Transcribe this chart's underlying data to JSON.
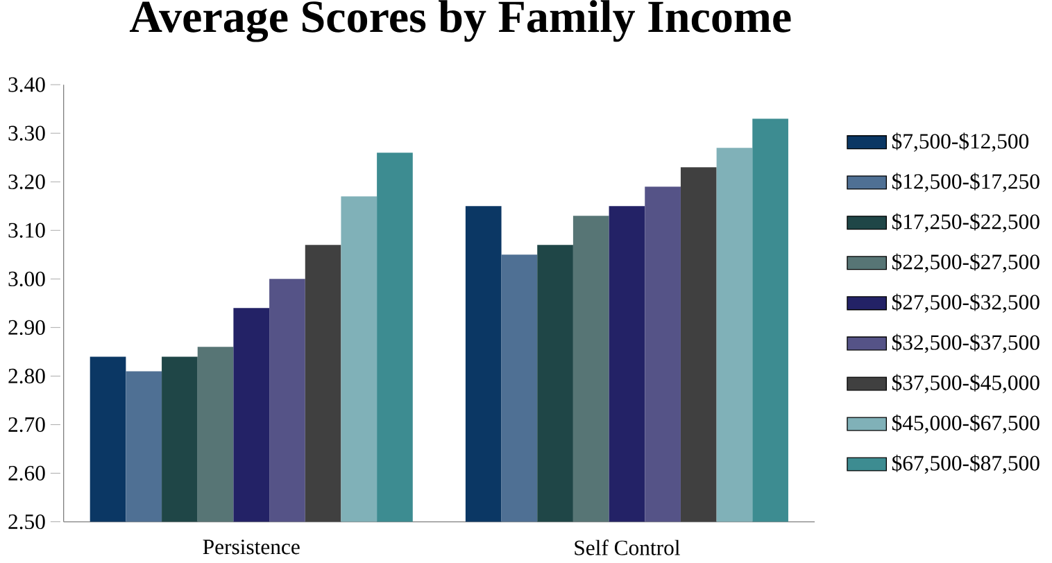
{
  "chart_data": {
    "type": "bar",
    "title": "Average Scores by Family Income",
    "categories": [
      "Persistence",
      "Self Control"
    ],
    "ylim": [
      2.5,
      3.4
    ],
    "yticks": [
      {
        "value": 2.5,
        "label": "2.50"
      },
      {
        "value": 2.6,
        "label": "2.60"
      },
      {
        "value": 2.7,
        "label": "2.70"
      },
      {
        "value": 2.8,
        "label": "2.80"
      },
      {
        "value": 2.9,
        "label": "2.90"
      },
      {
        "value": 3.0,
        "label": "3.00"
      },
      {
        "value": 3.1,
        "label": "3.10"
      },
      {
        "value": 3.2,
        "label": "3.20"
      },
      {
        "value": 3.3,
        "label": "3.30"
      },
      {
        "value": 3.4,
        "label": "3.40"
      }
    ],
    "legend": "right",
    "series": [
      {
        "name": "$7,500-$12,500",
        "color": "#0b3764",
        "values": [
          2.84,
          3.15
        ]
      },
      {
        "name": "$12,500-$17,250",
        "color": "#4f7094",
        "values": [
          2.81,
          3.05
        ]
      },
      {
        "name": "$17,250-$22,500",
        "color": "#1f4647",
        "values": [
          2.84,
          3.07
        ]
      },
      {
        "name": "$22,500-$27,500",
        "color": "#577575",
        "values": [
          2.86,
          3.13
        ]
      },
      {
        "name": "$27,500-$32,500",
        "color": "#232266",
        "values": [
          2.94,
          3.15
        ]
      },
      {
        "name": "$32,500-$37,500",
        "color": "#555387",
        "values": [
          3.0,
          3.19
        ]
      },
      {
        "name": "$37,500-$45,000",
        "color": "#404040",
        "values": [
          3.07,
          3.23
        ]
      },
      {
        "name": "$45,000-$67,500",
        "color": "#80b1b8",
        "values": [
          3.17,
          3.27
        ]
      },
      {
        "name": "$67,500-$87,500",
        "color": "#3d8c91",
        "values": [
          3.26,
          3.33
        ]
      }
    ]
  }
}
